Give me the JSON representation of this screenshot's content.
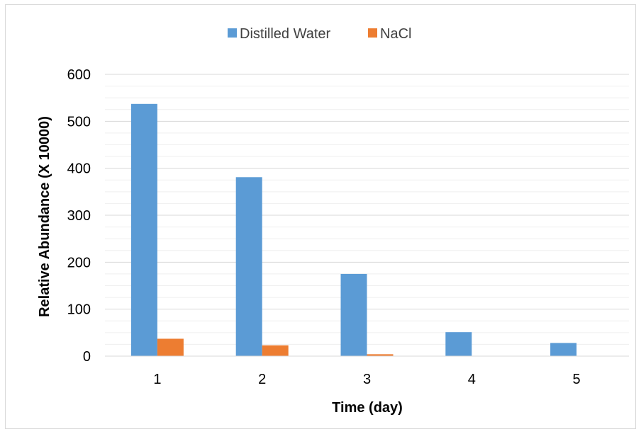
{
  "chart_data": {
    "type": "bar",
    "categories": [
      "1",
      "2",
      "3",
      "4",
      "5"
    ],
    "series": [
      {
        "name": "Distilled Water",
        "values": [
          537,
          381,
          175,
          51,
          28
        ],
        "color": "#5b9bd5"
      },
      {
        "name": "NaCl",
        "values": [
          37,
          23,
          4,
          0,
          0
        ],
        "color": "#ed7d31"
      }
    ],
    "title": "",
    "xlabel": "Time (day)",
    "ylabel": "Relative Abundance (X 10000)",
    "ylim": [
      0,
      600
    ],
    "yticks": [
      "0",
      "100",
      "200",
      "300",
      "400",
      "500",
      "600"
    ],
    "grid": true,
    "legend_position": "top"
  }
}
